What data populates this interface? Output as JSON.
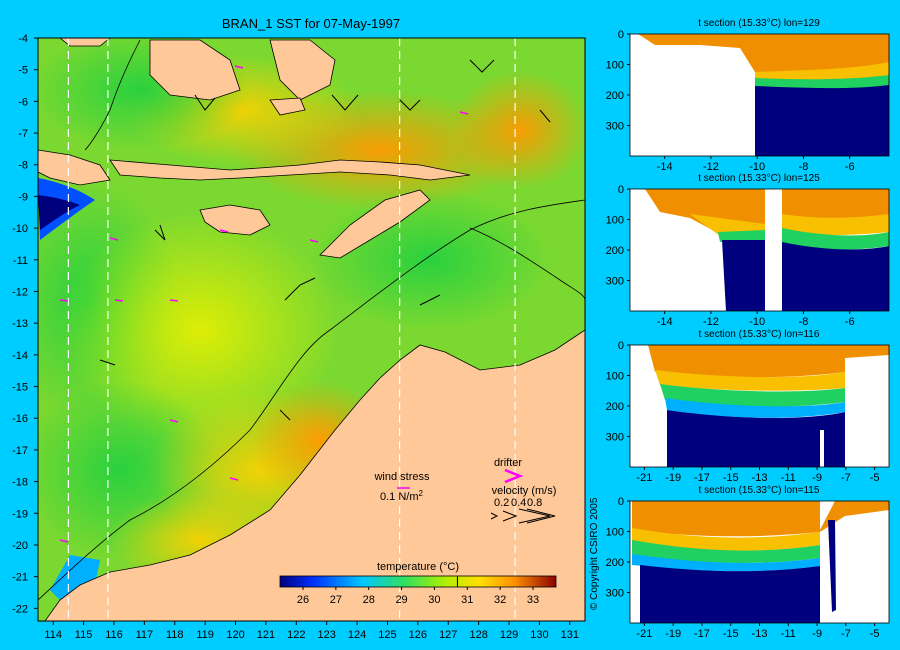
{
  "title": "BRAN_1 SST for 07-May-1997",
  "copyright": "© Copyright CSIRO 2005",
  "colors": {
    "background": "#00cdff",
    "land": "#ffc898",
    "deep": "#00007f",
    "drifter": "#ff00ff",
    "section_bg": "#ffffff"
  },
  "chart_data": [
    {
      "type": "heatmap",
      "title": "BRAN_1 SST for 07-May-1997",
      "xlabel": "",
      "ylabel": "",
      "x_ticks": [
        "114",
        "115",
        "116",
        "117",
        "118",
        "119",
        "120",
        "121",
        "122",
        "123",
        "124",
        "125",
        "126",
        "127",
        "128",
        "129",
        "130",
        "131"
      ],
      "y_ticks": [
        "-4",
        "-5",
        "-6",
        "-7",
        "-8",
        "-9",
        "-10",
        "-11",
        "-12",
        "-13",
        "-14",
        "-15",
        "-16",
        "-17",
        "-18",
        "-19",
        "-20",
        "-21",
        "-22"
      ],
      "xlim": [
        113.5,
        131.5
      ],
      "ylim": [
        -22.4,
        -4
      ],
      "section_lines_lon": [
        114.5,
        115.8,
        125.4,
        129.2
      ],
      "colorbar": {
        "label": "temperature (°C)",
        "ticks": [
          "26",
          "27",
          "28",
          "29",
          "30",
          "31",
          "32",
          "33"
        ],
        "range": [
          25.3,
          33.7
        ],
        "marker": 30.7
      },
      "legend": {
        "wind_stress_label": "wind stress",
        "wind_stress_value": "0.1 N/m",
        "wind_stress_sup": "2",
        "drifter_label": "drifter",
        "velocity_label": "velocity (m/s)",
        "velocity_values": [
          "0.2",
          "0.4",
          "0.8"
        ]
      }
    },
    {
      "type": "heatmap",
      "title": "t section (15.33°C) lon=129",
      "x_ticks": [
        "-14",
        "-12",
        "-10",
        "-8",
        "-6"
      ],
      "y_ticks": [
        "0",
        "100",
        "200",
        "300"
      ],
      "xlim": [
        -15.5,
        -4.3
      ],
      "ylim": [
        400,
        0
      ]
    },
    {
      "type": "heatmap",
      "title": "t section (15.33°C) lon=125",
      "x_ticks": [
        "-14",
        "-12",
        "-10",
        "-8",
        "-6"
      ],
      "y_ticks": [
        "0",
        "100",
        "200",
        "300"
      ],
      "xlim": [
        -15.5,
        -4.3
      ],
      "ylim": [
        400,
        0
      ]
    },
    {
      "type": "heatmap",
      "title": "t section (15.33°C) lon=116",
      "x_ticks": [
        "-21",
        "-19",
        "-17",
        "-15",
        "-13",
        "-11",
        "-9",
        "-7",
        "-5"
      ],
      "y_ticks": [
        "0",
        "100",
        "200",
        "300"
      ],
      "xlim": [
        -22,
        -4
      ],
      "ylim": [
        400,
        0
      ]
    },
    {
      "type": "heatmap",
      "title": "t section (15.33°C) lon=115",
      "x_ticks": [
        "-21",
        "-19",
        "-17",
        "-15",
        "-13",
        "-11",
        "-9",
        "-7",
        "-5"
      ],
      "y_ticks": [
        "0",
        "100",
        "200",
        "300"
      ],
      "xlim": [
        -22,
        -4
      ],
      "ylim": [
        400,
        0
      ]
    }
  ]
}
